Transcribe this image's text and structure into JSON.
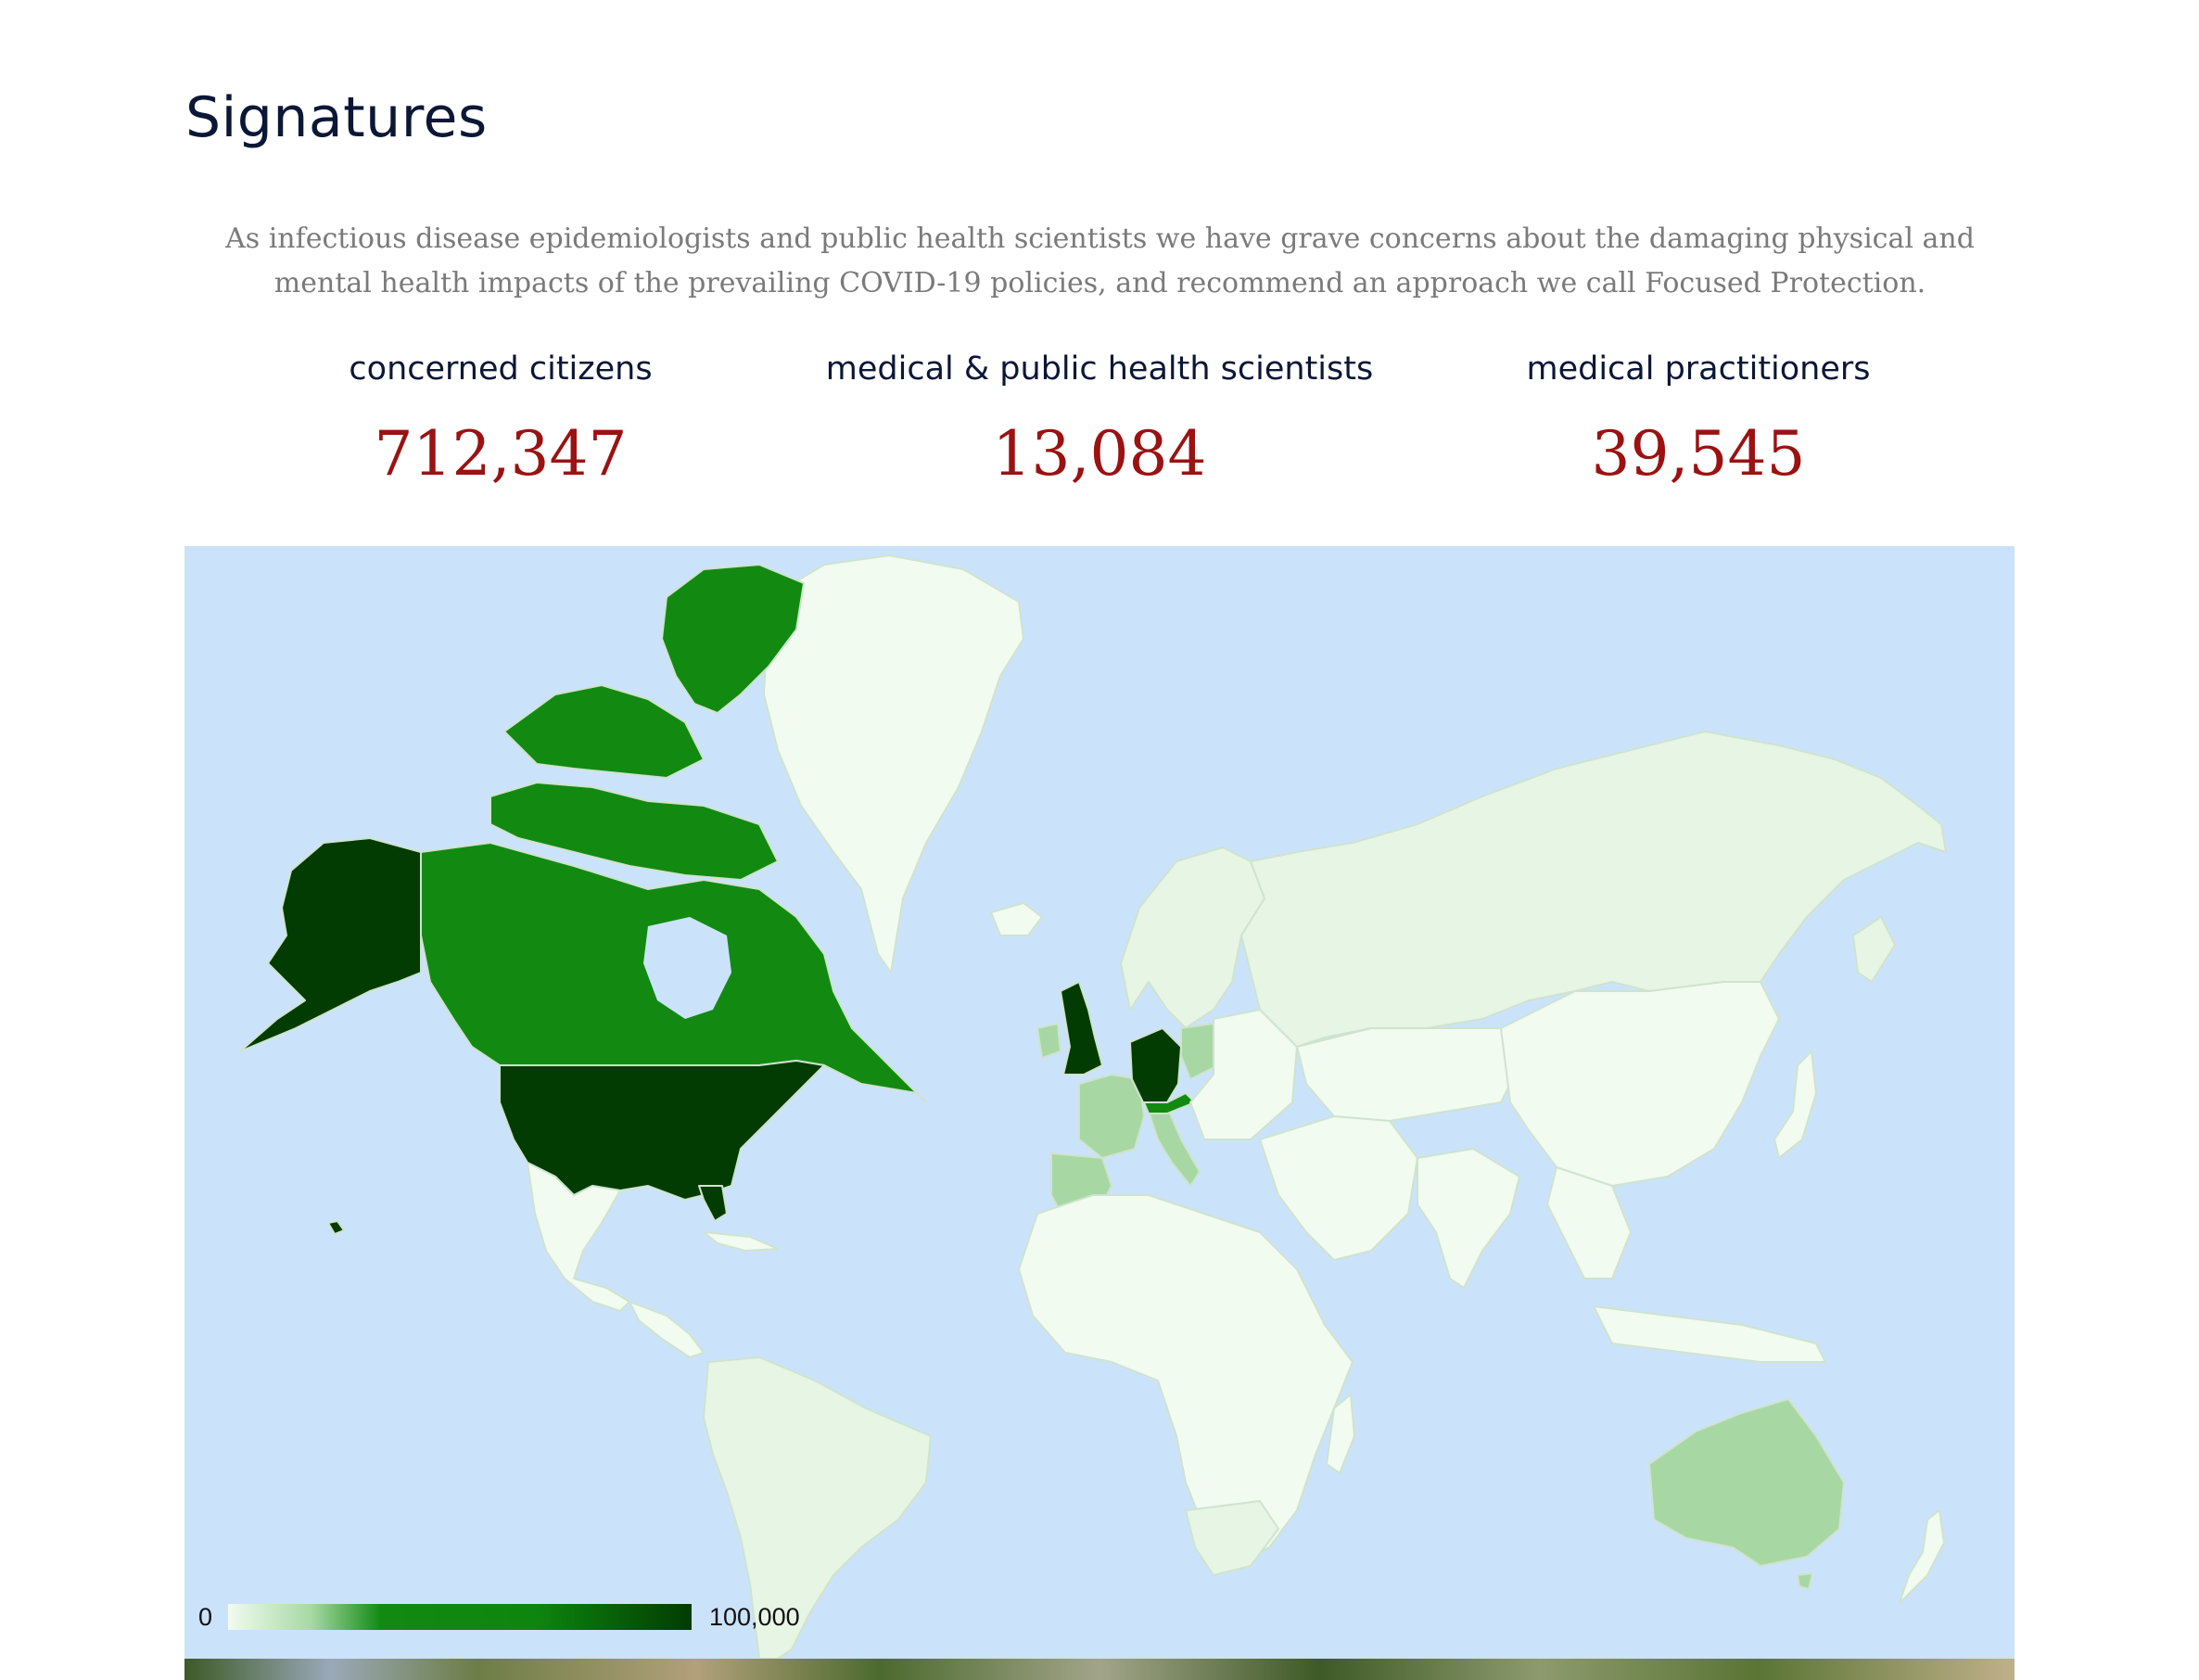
{
  "heading": "Signatures",
  "intro": "As infectious disease epidemiologists and public health scientists we have grave concerns about the damaging physical and mental health impacts of the prevailing COVID-19 policies, and recommend an approach we call Focused Protection.",
  "stats": [
    {
      "label": "concerned citizens",
      "value": "712,347"
    },
    {
      "label": "medical & public health scientists",
      "value": "13,084"
    },
    {
      "label": "medical practitioners",
      "value": "39,545"
    }
  ],
  "map": {
    "legend_min": "0",
    "legend_max": "100,000",
    "colors": {
      "ocean": "#cbe3fa",
      "none": "#f1fbf0",
      "very_low": "#e6f5e4",
      "low": "#a7d8a4",
      "mid": "#128a12",
      "high": "#023c02",
      "border": "#cfe3cf"
    }
  }
}
